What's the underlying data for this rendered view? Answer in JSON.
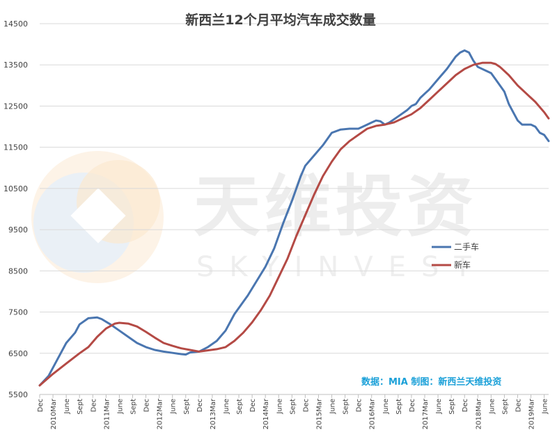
{
  "chart_data": {
    "type": "line",
    "title": "新西兰12个月平均汽车成交数量",
    "ylim": [
      5500,
      14500
    ],
    "yticks": [
      5500,
      6500,
      7500,
      8500,
      9500,
      10500,
      11500,
      12500,
      13500,
      14500
    ],
    "xlim": [
      0,
      115
    ],
    "xtick_labels": [
      {
        "m": 0,
        "label": "Dec"
      },
      {
        "m": 3,
        "label": "2010Mar"
      },
      {
        "m": 6,
        "label": "June"
      },
      {
        "m": 9,
        "label": "Sept"
      },
      {
        "m": 12,
        "label": "Dec"
      },
      {
        "m": 15,
        "label": "2011Mar"
      },
      {
        "m": 18,
        "label": "June"
      },
      {
        "m": 21,
        "label": "Sept"
      },
      {
        "m": 24,
        "label": "Dec"
      },
      {
        "m": 27,
        "label": "2012Mar"
      },
      {
        "m": 30,
        "label": "June"
      },
      {
        "m": 33,
        "label": "Sept"
      },
      {
        "m": 36,
        "label": "Dec"
      },
      {
        "m": 39,
        "label": "2013Mar"
      },
      {
        "m": 42,
        "label": "June"
      },
      {
        "m": 45,
        "label": "Sept"
      },
      {
        "m": 48,
        "label": "Dec"
      },
      {
        "m": 51,
        "label": "2014Mar"
      },
      {
        "m": 54,
        "label": "June"
      },
      {
        "m": 57,
        "label": "Sept"
      },
      {
        "m": 60,
        "label": "Dec"
      },
      {
        "m": 63,
        "label": "2015Mar"
      },
      {
        "m": 66,
        "label": "June"
      },
      {
        "m": 69,
        "label": "Sept"
      },
      {
        "m": 72,
        "label": "Dec"
      },
      {
        "m": 75,
        "label": "2016Mar"
      },
      {
        "m": 78,
        "label": "June"
      },
      {
        "m": 81,
        "label": "Sept"
      },
      {
        "m": 84,
        "label": "Dec"
      },
      {
        "m": 87,
        "label": "2017Mar"
      },
      {
        "m": 90,
        "label": "June"
      },
      {
        "m": 93,
        "label": "Sept"
      },
      {
        "m": 96,
        "label": "Dec"
      },
      {
        "m": 99,
        "label": "2018Mar"
      },
      {
        "m": 102,
        "label": "June"
      },
      {
        "m": 105,
        "label": "Sept"
      },
      {
        "m": 108,
        "label": "Dec"
      },
      {
        "m": 111,
        "label": "2019Mar"
      },
      {
        "m": 114,
        "label": "June"
      }
    ],
    "legend_position": "right",
    "grid": true,
    "series": [
      {
        "name": "二手车",
        "color": "#4a76b0",
        "points": [
          [
            0,
            5720
          ],
          [
            2,
            5950
          ],
          [
            4,
            6350
          ],
          [
            6,
            6750
          ],
          [
            8,
            7000
          ],
          [
            9,
            7200
          ],
          [
            11,
            7350
          ],
          [
            13,
            7370
          ],
          [
            14,
            7330
          ],
          [
            16,
            7200
          ],
          [
            18,
            7050
          ],
          [
            20,
            6900
          ],
          [
            22,
            6750
          ],
          [
            24,
            6650
          ],
          [
            26,
            6580
          ],
          [
            28,
            6540
          ],
          [
            30,
            6510
          ],
          [
            32,
            6480
          ],
          [
            33,
            6470
          ],
          [
            34,
            6520
          ],
          [
            36,
            6540
          ],
          [
            38,
            6650
          ],
          [
            40,
            6800
          ],
          [
            42,
            7050
          ],
          [
            44,
            7450
          ],
          [
            46,
            7750
          ],
          [
            47,
            7900
          ],
          [
            49,
            8250
          ],
          [
            51,
            8600
          ],
          [
            53,
            9050
          ],
          [
            55,
            9650
          ],
          [
            57,
            10200
          ],
          [
            59,
            10800
          ],
          [
            60,
            11050
          ],
          [
            62,
            11300
          ],
          [
            64,
            11550
          ],
          [
            65,
            11700
          ],
          [
            66,
            11850
          ],
          [
            68,
            11930
          ],
          [
            70,
            11950
          ],
          [
            72,
            11950
          ],
          [
            73,
            12000
          ],
          [
            74,
            12050
          ],
          [
            75,
            12100
          ],
          [
            76,
            12150
          ],
          [
            77,
            12130
          ],
          [
            78,
            12050
          ],
          [
            79,
            12100
          ],
          [
            81,
            12250
          ],
          [
            83,
            12400
          ],
          [
            84,
            12500
          ],
          [
            85,
            12550
          ],
          [
            86,
            12700
          ],
          [
            87,
            12800
          ],
          [
            88,
            12900
          ],
          [
            90,
            13150
          ],
          [
            92,
            13400
          ],
          [
            94,
            13700
          ],
          [
            95,
            13800
          ],
          [
            96,
            13850
          ],
          [
            97,
            13800
          ],
          [
            98,
            13600
          ],
          [
            99,
            13450
          ],
          [
            101,
            13350
          ],
          [
            102,
            13300
          ],
          [
            103,
            13150
          ],
          [
            105,
            12850
          ],
          [
            106,
            12550
          ],
          [
            107,
            12350
          ],
          [
            108,
            12150
          ],
          [
            109,
            12050
          ],
          [
            110,
            12050
          ],
          [
            111,
            12050
          ],
          [
            112,
            12000
          ],
          [
            113,
            11850
          ],
          [
            114,
            11800
          ],
          [
            115,
            11650
          ]
        ]
      },
      {
        "name": "新车",
        "color": "#b44a45",
        "points": [
          [
            0,
            5720
          ],
          [
            3,
            6000
          ],
          [
            6,
            6250
          ],
          [
            9,
            6500
          ],
          [
            11,
            6650
          ],
          [
            13,
            6900
          ],
          [
            15,
            7100
          ],
          [
            17,
            7220
          ],
          [
            18,
            7240
          ],
          [
            20,
            7220
          ],
          [
            22,
            7150
          ],
          [
            24,
            7020
          ],
          [
            26,
            6880
          ],
          [
            28,
            6750
          ],
          [
            30,
            6680
          ],
          [
            32,
            6620
          ],
          [
            34,
            6580
          ],
          [
            36,
            6540
          ],
          [
            38,
            6570
          ],
          [
            40,
            6600
          ],
          [
            42,
            6650
          ],
          [
            44,
            6800
          ],
          [
            46,
            7000
          ],
          [
            48,
            7250
          ],
          [
            50,
            7550
          ],
          [
            52,
            7900
          ],
          [
            54,
            8350
          ],
          [
            56,
            8800
          ],
          [
            58,
            9350
          ],
          [
            60,
            9850
          ],
          [
            62,
            10350
          ],
          [
            64,
            10800
          ],
          [
            66,
            11150
          ],
          [
            68,
            11450
          ],
          [
            70,
            11650
          ],
          [
            72,
            11800
          ],
          [
            74,
            11950
          ],
          [
            76,
            12020
          ],
          [
            78,
            12050
          ],
          [
            80,
            12100
          ],
          [
            82,
            12200
          ],
          [
            84,
            12300
          ],
          [
            86,
            12450
          ],
          [
            88,
            12650
          ],
          [
            90,
            12850
          ],
          [
            92,
            13050
          ],
          [
            94,
            13250
          ],
          [
            96,
            13400
          ],
          [
            98,
            13500
          ],
          [
            100,
            13550
          ],
          [
            102,
            13550
          ],
          [
            103,
            13520
          ],
          [
            104,
            13450
          ],
          [
            106,
            13250
          ],
          [
            108,
            13000
          ],
          [
            110,
            12800
          ],
          [
            112,
            12600
          ],
          [
            114,
            12350
          ],
          [
            115,
            12200
          ]
        ]
      }
    ],
    "annotations": {
      "watermark_cn": "天维投资",
      "watermark_en": "SKYINVEST",
      "source": "数据：MIA  制图：新西兰天维投资"
    }
  }
}
